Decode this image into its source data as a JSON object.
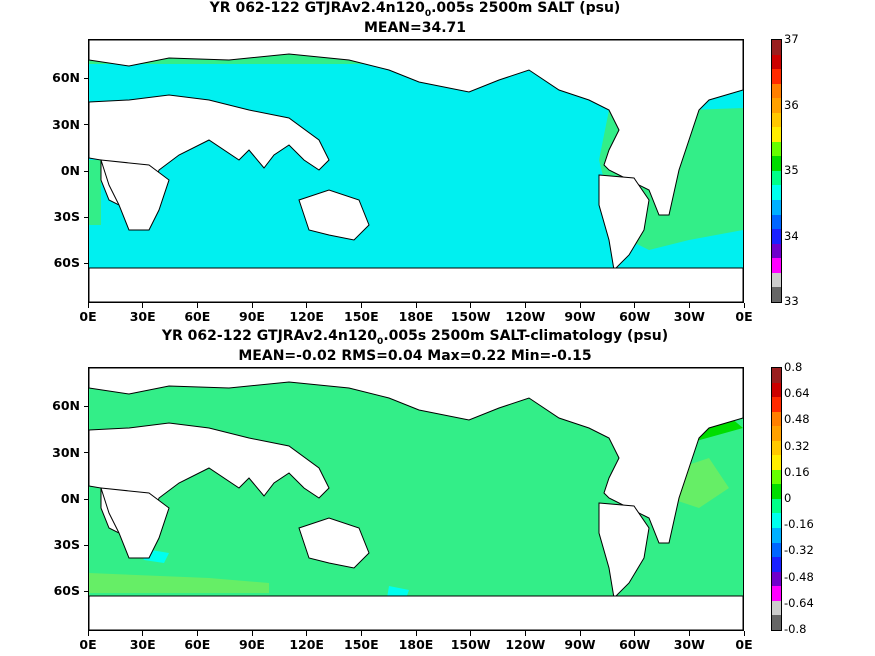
{
  "panels": [
    {
      "title_pre": "YR 062-122 GTJRAv2.4n120",
      "title_sub": "0",
      "title_post": ".005s 2500m SALT (psu)",
      "subtitle": "MEAN=34.71",
      "background": "#00f0f0",
      "colorbar": {
        "labels": [
          "37",
          "36",
          "35",
          "34",
          "33"
        ],
        "colors": [
          "#9a1e1e",
          "#cc0000",
          "#ff2a00",
          "#ff7f00",
          "#ffa000",
          "#ffc800",
          "#ffee00",
          "#66ff00",
          "#00dd00",
          "#00ff88",
          "#00ffee",
          "#00b0ff",
          "#0066ff",
          "#1a20ff",
          "#7000cc",
          "#ff00ff",
          "#cccccc",
          "#666666"
        ]
      }
    },
    {
      "title_pre": "YR 062-122 GTJRAv2.4n120",
      "title_sub": "0",
      "title_post": ".005s 2500m SALT-climatology (psu)",
      "subtitle": "MEAN=-0.02   RMS=0.04   Max=0.22   Min=-0.15",
      "background": "#33ee88",
      "colorbar": {
        "labels": [
          "0.8",
          "0.64",
          "0.48",
          "0.32",
          "0.16",
          "0",
          "-0.16",
          "-0.32",
          "-0.48",
          "-0.64",
          "-0.8"
        ],
        "colors": [
          "#9a1e1e",
          "#cc0000",
          "#ff2a00",
          "#ff7f00",
          "#ffa000",
          "#ffc800",
          "#ffee00",
          "#66ff00",
          "#00dd00",
          "#00ff88",
          "#00ffee",
          "#00b0ff",
          "#0066ff",
          "#1a20ff",
          "#7000cc",
          "#ff00ff",
          "#cccccc",
          "#666666"
        ]
      }
    }
  ],
  "y_axis_labels": [
    "60N",
    "30N",
    "0N",
    "30S",
    "60S"
  ],
  "x_axis_labels": [
    "0E",
    "30E",
    "60E",
    "90E",
    "120E",
    "150E",
    "180E",
    "150W",
    "120W",
    "90W",
    "60W",
    "30W",
    "0E"
  ]
}
